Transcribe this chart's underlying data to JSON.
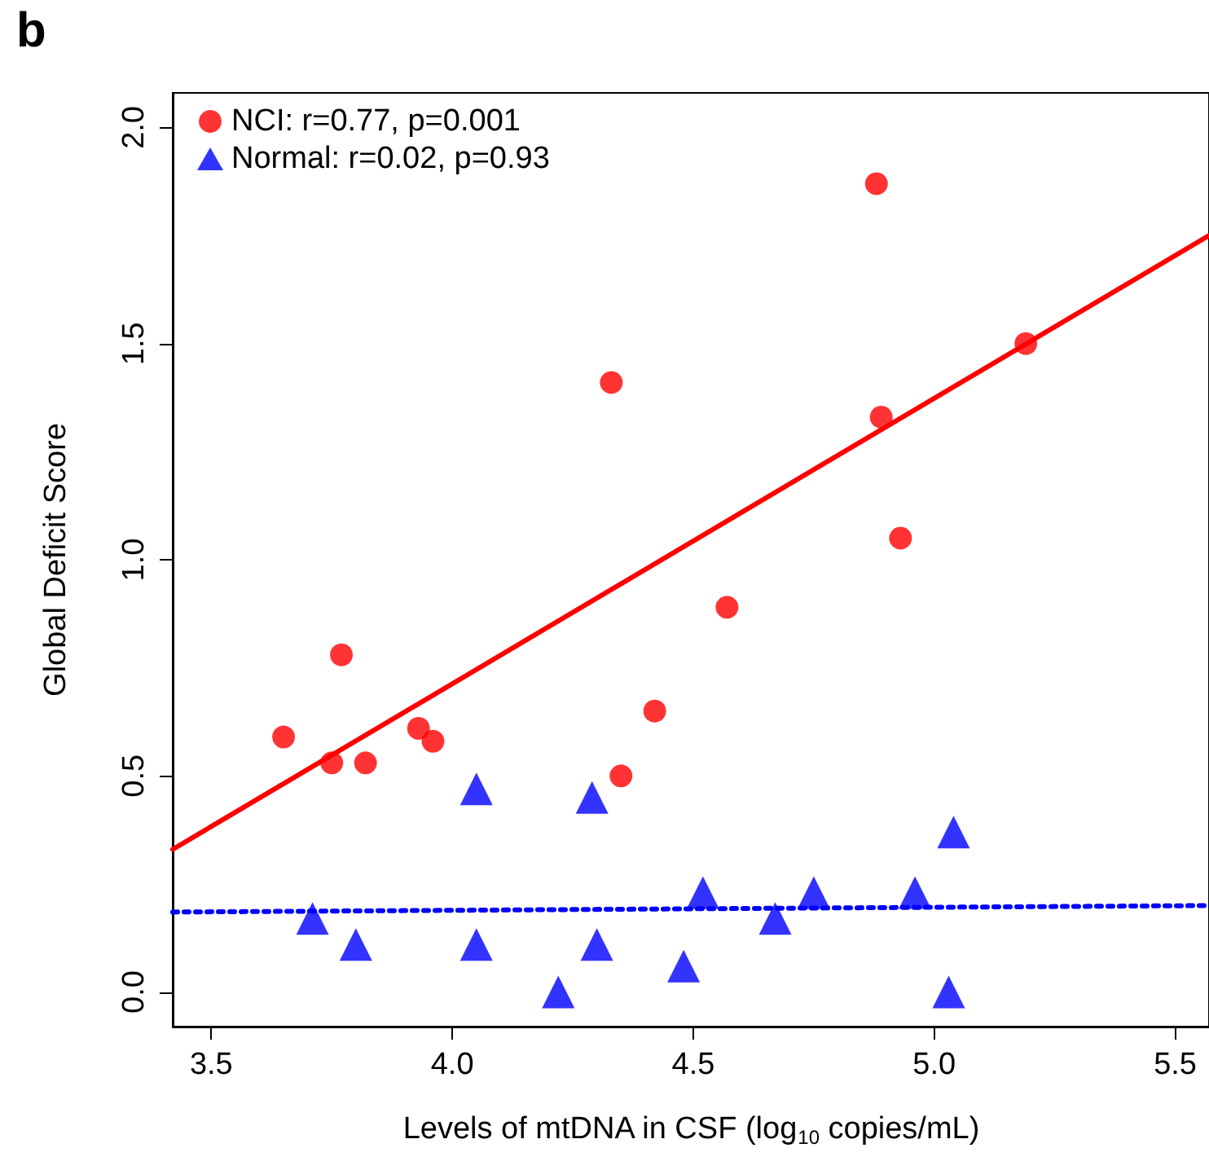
{
  "chart_data": {
    "type": "scatter",
    "xlabel": "Levels of mtDNA in CSF (log$_{10}$ copies/mL)",
    "ylabel": "Global Deficit Score",
    "annotations": [
      "b"
    ],
    "xlim": [
      3.42,
      5.57
    ],
    "xticks": [
      3.5,
      {
        "value": 4,
        "label": "4.0"
      },
      4.5,
      {
        "value": 5,
        "label": "5.0"
      },
      5.5
    ],
    "ylim": [
      -0.08,
      2.08
    ],
    "yticks": [
      {
        "value": 0,
        "label": "0.0"
      },
      0.5,
      {
        "value": 1,
        "label": "1.0"
      },
      1.5,
      {
        "value": 2,
        "label": "2.0"
      }
    ],
    "grid": false,
    "legend": "top left",
    "series": [
      {
        "name": "NCI: r=0.77, p=0.001",
        "color": "#ff0000",
        "marker": "circle",
        "x": [
          3.65,
          3.77,
          3.75,
          3.82,
          3.93,
          3.96,
          4.42,
          4.35,
          4.33,
          4.57,
          4.88,
          4.89,
          4.93,
          5.19
        ],
        "values": [
          0.59,
          0.78,
          0.53,
          0.53,
          0.61,
          0.58,
          0.65,
          0.5,
          1.41,
          0.89,
          1.87,
          1.33,
          1.05,
          1.5
        ]
      },
      {
        "name": "Normal: r=0.02, p=0.93",
        "color": "#0000ff",
        "marker": "triangle",
        "x": [
          3.71,
          3.8,
          4.05,
          4.05,
          4.22,
          4.29,
          4.3,
          4.48,
          4.52,
          4.67,
          4.75,
          4.96,
          5.03,
          5.04
        ],
        "values": [
          0.17,
          0.11,
          0.47,
          0.11,
          0.0,
          0.45,
          0.11,
          0.06,
          0.23,
          0.17,
          0.23,
          0.23,
          0.0,
          0.37
        ]
      },
      {
        "type": "line",
        "color": "#ff0000",
        "marker": "none",
        "line_style": "solid",
        "x": [
          3.42,
          5.57
        ],
        "values": [
          0.33,
          1.75
        ]
      },
      {
        "type": "line",
        "color": "#0000ff",
        "marker": "none",
        "line_style": "dotted",
        "x": [
          3.42,
          5.57
        ],
        "values": [
          0.185,
          0.2
        ]
      }
    ]
  }
}
